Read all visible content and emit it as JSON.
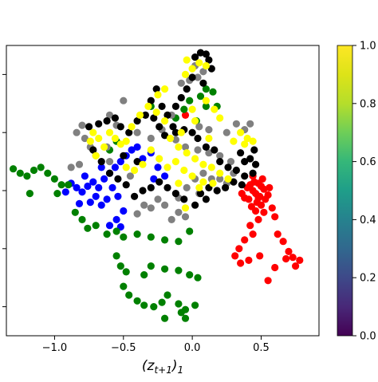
{
  "chart_data": {
    "type": "scatter",
    "title": "",
    "xlabel": "(z_{t+1})_1",
    "ylabel": "",
    "xlim": [
      -1.35,
      0.92
    ],
    "ylim": [
      -1.0,
      1.0
    ],
    "xticks": [
      -1.0,
      -0.5,
      0.0,
      0.5
    ],
    "xtick_labels": [
      "−1.0",
      "−0.5",
      "0.0",
      "0.5"
    ],
    "yticks": [
      -0.8,
      -0.4,
      0.0,
      0.4,
      0.8
    ],
    "grid": false,
    "legend": "none",
    "colorbar": {
      "colormap": "viridis",
      "range": [
        0.0,
        1.0
      ],
      "ticks": [
        0.0,
        0.2,
        0.4,
        0.6,
        0.8,
        1.0
      ],
      "tick_labels": [
        "0.0",
        "0.2",
        "0.4",
        "0.6",
        "0.8",
        "1.0"
      ]
    },
    "groups": [
      {
        "color": "#ff0000",
        "points": [
          [
            0.42,
            0.04
          ],
          [
            0.45,
            0.06
          ],
          [
            0.48,
            0.05
          ],
          [
            0.5,
            0.03
          ],
          [
            0.52,
            0.01
          ],
          [
            0.44,
            0.0
          ],
          [
            0.46,
            -0.02
          ],
          [
            0.49,
            -0.04
          ],
          [
            0.41,
            -0.06
          ],
          [
            0.47,
            -0.08
          ],
          [
            0.53,
            -0.06
          ],
          [
            0.55,
            -0.03
          ],
          [
            0.5,
            -0.1
          ],
          [
            0.43,
            -0.11
          ],
          [
            0.38,
            -0.05
          ],
          [
            0.36,
            -0.02
          ],
          [
            0.4,
            0.02
          ],
          [
            0.56,
            0.02
          ],
          [
            0.46,
            -0.14
          ],
          [
            0.52,
            -0.15
          ],
          [
            0.58,
            -0.12
          ],
          [
            0.6,
            -0.18
          ],
          [
            0.48,
            -0.2
          ],
          [
            0.42,
            -0.24
          ],
          [
            0.44,
            -0.3
          ],
          [
            0.38,
            -0.34
          ],
          [
            0.34,
            -0.4
          ],
          [
            0.31,
            -0.45
          ],
          [
            0.35,
            -0.5
          ],
          [
            0.41,
            -0.48
          ],
          [
            0.49,
            -0.45
          ],
          [
            0.62,
            -0.3
          ],
          [
            0.66,
            -0.35
          ],
          [
            0.7,
            -0.42
          ],
          [
            0.73,
            -0.46
          ],
          [
            0.78,
            -0.48
          ],
          [
            0.75,
            -0.52
          ],
          [
            0.68,
            -0.47
          ],
          [
            0.6,
            -0.53
          ],
          [
            0.55,
            -0.62
          ],
          [
            0.48,
            -0.05
          ],
          [
            0.51,
            0.08
          ],
          [
            0.44,
            0.1
          ],
          [
            -0.05,
            0.52
          ]
        ]
      },
      {
        "color": "#0000ff",
        "points": [
          [
            -0.88,
            0.05
          ],
          [
            -0.84,
            0.02
          ],
          [
            -0.8,
            -0.01
          ],
          [
            -0.76,
            0.03
          ],
          [
            -0.72,
            0.06
          ],
          [
            -0.68,
            0.02
          ],
          [
            -0.7,
            -0.04
          ],
          [
            -0.74,
            -0.08
          ],
          [
            -0.66,
            -0.1
          ],
          [
            -0.62,
            -0.06
          ],
          [
            -0.64,
            0.08
          ],
          [
            -0.6,
            0.12
          ],
          [
            -0.56,
            0.16
          ],
          [
            -0.52,
            0.2
          ],
          [
            -0.48,
            0.24
          ],
          [
            -0.44,
            0.28
          ],
          [
            -0.4,
            0.3
          ],
          [
            -0.58,
            0.02
          ],
          [
            -0.54,
            -0.04
          ],
          [
            -0.5,
            -0.14
          ],
          [
            -0.55,
            -0.2
          ],
          [
            -0.6,
            -0.24
          ],
          [
            -0.52,
            -0.25
          ],
          [
            -0.78,
            0.1
          ],
          [
            -0.66,
            0.16
          ],
          [
            -0.36,
            0.22
          ],
          [
            -0.3,
            0.26
          ],
          [
            -0.25,
            0.16
          ],
          [
            -0.2,
            0.1
          ],
          [
            -0.28,
            0.08
          ],
          [
            -0.92,
            -0.01
          ],
          [
            -0.82,
            -0.09
          ]
        ]
      },
      {
        "color": "#008000",
        "points": [
          [
            -1.3,
            0.15
          ],
          [
            -1.25,
            0.12
          ],
          [
            -1.2,
            0.1
          ],
          [
            -1.15,
            0.14
          ],
          [
            -1.1,
            0.16
          ],
          [
            -1.05,
            0.12
          ],
          [
            -1.0,
            0.08
          ],
          [
            -0.95,
            0.04
          ],
          [
            -1.18,
            -0.02
          ],
          [
            -0.98,
            -0.02
          ],
          [
            -0.9,
            0.04
          ],
          [
            -0.85,
            -0.15
          ],
          [
            -0.8,
            -0.2
          ],
          [
            -0.76,
            -0.26
          ],
          [
            -0.7,
            -0.24
          ],
          [
            -0.62,
            -0.3
          ],
          [
            -0.55,
            -0.28
          ],
          [
            -0.5,
            -0.32
          ],
          [
            -0.4,
            -0.3
          ],
          [
            -0.3,
            -0.32
          ],
          [
            -0.2,
            -0.34
          ],
          [
            -0.1,
            -0.35
          ],
          [
            -0.02,
            -0.28
          ],
          [
            -0.55,
            -0.45
          ],
          [
            -0.52,
            -0.52
          ],
          [
            -0.48,
            -0.56
          ],
          [
            -0.5,
            -0.66
          ],
          [
            -0.46,
            -0.72
          ],
          [
            -0.4,
            -0.76
          ],
          [
            -0.35,
            -0.79
          ],
          [
            -0.28,
            -0.8
          ],
          [
            -0.22,
            -0.77
          ],
          [
            -0.18,
            -0.72
          ],
          [
            -0.1,
            -0.78
          ],
          [
            -0.05,
            -0.82
          ],
          [
            0.02,
            -0.79
          ],
          [
            -0.08,
            -0.84
          ],
          [
            -0.05,
            -0.88
          ],
          [
            -0.2,
            -0.88
          ],
          [
            -0.3,
            -0.52
          ],
          [
            -0.2,
            -0.54
          ],
          [
            -0.1,
            -0.55
          ],
          [
            -0.02,
            -0.58
          ],
          [
            0.04,
            -0.6
          ],
          [
            -0.35,
            -0.58
          ],
          [
            -0.6,
            0.28
          ],
          [
            -0.55,
            0.34
          ],
          [
            -0.12,
            0.5
          ],
          [
            -0.06,
            0.56
          ],
          [
            -0.02,
            0.62
          ],
          [
            0.06,
            0.65
          ],
          [
            0.1,
            0.7
          ],
          [
            0.15,
            0.68
          ],
          [
            0.18,
            0.58
          ],
          [
            0.1,
            0.58
          ],
          [
            -0.3,
            0.58
          ],
          [
            0.03,
            0.48
          ]
        ]
      },
      {
        "color": "#808080",
        "points": [
          [
            -0.8,
            0.45
          ],
          [
            -0.84,
            0.4
          ],
          [
            -0.78,
            0.36
          ],
          [
            -0.74,
            0.3
          ],
          [
            -0.7,
            0.24
          ],
          [
            -0.82,
            0.18
          ],
          [
            -0.88,
            0.16
          ],
          [
            -0.6,
            0.52
          ],
          [
            -0.5,
            0.62
          ],
          [
            -0.4,
            0.4
          ],
          [
            -0.3,
            0.36
          ],
          [
            -0.22,
            0.42
          ],
          [
            -0.15,
            0.52
          ],
          [
            -0.12,
            0.35
          ],
          [
            -0.05,
            0.3
          ],
          [
            0.04,
            0.28
          ],
          [
            0.12,
            0.26
          ],
          [
            0.2,
            0.24
          ],
          [
            0.28,
            0.2
          ],
          [
            0.3,
            0.12
          ],
          [
            0.25,
            0.05
          ],
          [
            0.14,
            0.08
          ],
          [
            0.08,
            0.12
          ],
          [
            0.02,
            0.08
          ],
          [
            -0.04,
            0.02
          ],
          [
            -0.1,
            -0.05
          ],
          [
            -0.1,
            -0.15
          ],
          [
            -0.05,
            -0.18
          ],
          [
            -0.15,
            -0.2
          ],
          [
            -0.2,
            -0.1
          ],
          [
            -0.25,
            -0.06
          ],
          [
            -0.3,
            -0.12
          ],
          [
            -0.35,
            -0.1
          ],
          [
            -0.4,
            -0.16
          ],
          [
            -0.55,
            0.45
          ],
          [
            -0.62,
            0.3
          ],
          [
            0.32,
            0.46
          ],
          [
            0.42,
            0.46
          ],
          [
            0.38,
            0.42
          ],
          [
            0.25,
            0.4
          ],
          [
            0.12,
            0.42
          ],
          [
            0.05,
            0.44
          ],
          [
            -0.08,
            0.74
          ],
          [
            -0.02,
            0.76
          ],
          [
            0.04,
            0.78
          ],
          [
            0.08,
            0.82
          ],
          [
            0.02,
            0.86
          ],
          [
            0.2,
            0.08
          ],
          [
            0.05,
            -0.02
          ],
          [
            -0.45,
            0.1
          ],
          [
            -0.6,
            0.2
          ]
        ]
      },
      {
        "color": "#000000",
        "points": [
          [
            -0.75,
            0.44
          ],
          [
            -0.68,
            0.46
          ],
          [
            -0.62,
            0.48
          ],
          [
            -0.56,
            0.5
          ],
          [
            -0.52,
            0.44
          ],
          [
            -0.46,
            0.4
          ],
          [
            -0.4,
            0.48
          ],
          [
            -0.34,
            0.52
          ],
          [
            -0.28,
            0.5
          ],
          [
            -0.24,
            0.44
          ],
          [
            -0.2,
            0.38
          ],
          [
            -0.12,
            0.4
          ],
          [
            -0.06,
            0.42
          ],
          [
            0.0,
            0.4
          ],
          [
            0.04,
            0.36
          ],
          [
            0.1,
            0.3
          ],
          [
            0.16,
            0.28
          ],
          [
            0.2,
            0.2
          ],
          [
            0.26,
            0.16
          ],
          [
            0.32,
            0.14
          ],
          [
            0.38,
            0.2
          ],
          [
            0.42,
            0.22
          ],
          [
            0.46,
            0.18
          ],
          [
            0.44,
            0.12
          ],
          [
            0.38,
            0.1
          ],
          [
            0.36,
            0.04
          ],
          [
            0.3,
            0.06
          ],
          [
            0.24,
            0.02
          ],
          [
            0.18,
            0.0
          ],
          [
            0.12,
            0.02
          ],
          [
            0.06,
            -0.02
          ],
          [
            -0.06,
            -0.06
          ],
          [
            -0.12,
            -0.02
          ],
          [
            -0.18,
            0.02
          ],
          [
            -0.24,
            0.06
          ],
          [
            -0.3,
            0.02
          ],
          [
            -0.36,
            0.0
          ],
          [
            -0.42,
            -0.04
          ],
          [
            -0.48,
            0.04
          ],
          [
            -0.54,
            0.08
          ],
          [
            -0.6,
            0.12
          ],
          [
            -0.66,
            0.2
          ],
          [
            -0.72,
            0.28
          ],
          [
            -0.08,
            0.64
          ],
          [
            -0.04,
            0.7
          ],
          [
            0.0,
            0.78
          ],
          [
            0.02,
            0.92
          ],
          [
            0.06,
            0.95
          ],
          [
            0.1,
            0.94
          ],
          [
            0.12,
            0.9
          ],
          [
            0.14,
            0.84
          ],
          [
            0.08,
            0.74
          ],
          [
            -0.12,
            0.58
          ],
          [
            -0.18,
            0.52
          ],
          [
            -0.22,
            0.58
          ],
          [
            -0.3,
            0.62
          ],
          [
            -0.26,
            0.7
          ],
          [
            -0.14,
            0.44
          ],
          [
            -0.4,
            0.2
          ],
          [
            -0.5,
            0.24
          ],
          [
            0.1,
            -0.06
          ],
          [
            0.02,
            -0.1
          ],
          [
            0.45,
            0.28
          ],
          [
            0.35,
            0.26
          ]
        ]
      },
      {
        "color": "#ffff00",
        "points": [
          [
            -0.72,
            0.4
          ],
          [
            -0.68,
            0.36
          ],
          [
            -0.64,
            0.3
          ],
          [
            -0.6,
            0.4
          ],
          [
            -0.56,
            0.36
          ],
          [
            -0.52,
            0.32
          ],
          [
            -0.48,
            0.34
          ],
          [
            -0.44,
            0.44
          ],
          [
            -0.38,
            0.52
          ],
          [
            -0.32,
            0.58
          ],
          [
            -0.26,
            0.54
          ],
          [
            -0.2,
            0.48
          ],
          [
            -0.16,
            0.36
          ],
          [
            -0.1,
            0.3
          ],
          [
            -0.04,
            0.26
          ],
          [
            0.02,
            0.22
          ],
          [
            0.08,
            0.18
          ],
          [
            0.14,
            0.16
          ],
          [
            0.2,
            0.12
          ],
          [
            0.26,
            0.08
          ],
          [
            0.08,
            0.06
          ],
          [
            0.0,
            0.1
          ],
          [
            -0.06,
            0.14
          ],
          [
            -0.12,
            0.2
          ],
          [
            -0.18,
            0.16
          ],
          [
            -0.24,
            0.22
          ],
          [
            -0.3,
            0.28
          ],
          [
            -0.36,
            0.18
          ],
          [
            -0.42,
            0.14
          ],
          [
            -0.48,
            0.16
          ],
          [
            0.35,
            0.4
          ],
          [
            0.4,
            0.36
          ],
          [
            0.44,
            0.34
          ],
          [
            0.38,
            0.32
          ],
          [
            0.3,
            0.34
          ],
          [
            -0.05,
            0.8
          ],
          [
            0.0,
            0.84
          ],
          [
            0.05,
            0.88
          ],
          [
            0.1,
            0.86
          ],
          [
            -0.04,
            0.9
          ],
          [
            0.1,
            0.62
          ],
          [
            0.16,
            0.56
          ],
          [
            0.2,
            0.5
          ],
          [
            -0.25,
            0.66
          ],
          [
            -0.2,
            0.7
          ],
          [
            -0.7,
            0.24
          ],
          [
            -0.74,
            0.34
          ],
          [
            0.02,
            0.48
          ],
          [
            -0.1,
            0.05
          ],
          [
            0.05,
            0.02
          ],
          [
            0.15,
            0.05
          ],
          [
            -0.05,
            -0.12
          ],
          [
            0.0,
            0.56
          ],
          [
            -0.08,
            0.4
          ],
          [
            0.12,
            0.36
          ]
        ]
      }
    ]
  }
}
